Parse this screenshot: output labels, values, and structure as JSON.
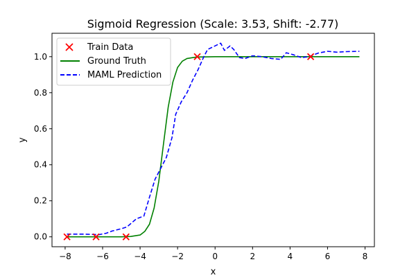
{
  "chart_data": {
    "type": "line",
    "title": "Sigmoid Regression (Scale: 3.53, Shift: -2.77)",
    "xlabel": "x",
    "ylabel": "y",
    "xlim": [
      -8.7,
      8.5
    ],
    "ylim": [
      -0.055,
      1.13
    ],
    "x_ticks": [
      -8,
      -6,
      -4,
      -2,
      0,
      2,
      4,
      6,
      8
    ],
    "y_ticks": [
      0.0,
      0.2,
      0.4,
      0.6,
      0.8,
      1.0
    ],
    "grid": false,
    "legend_position": "top-left",
    "series": [
      {
        "name": "Train Data",
        "kind": "scatter",
        "color": "#ff0000",
        "marker": "x",
        "points": [
          [
            -7.9,
            0.0
          ],
          [
            -6.35,
            0.0
          ],
          [
            -4.75,
            0.0
          ],
          [
            -0.95,
            1.0
          ],
          [
            5.1,
            1.0
          ]
        ]
      },
      {
        "name": "Ground Truth",
        "kind": "line",
        "color": "#008000",
        "style": "solid",
        "points": [
          [
            -7.9,
            0.0
          ],
          [
            -5.0,
            0.0
          ],
          [
            -4.5,
            0.002
          ],
          [
            -4.0,
            0.01
          ],
          [
            -3.75,
            0.03
          ],
          [
            -3.5,
            0.07
          ],
          [
            -3.25,
            0.16
          ],
          [
            -3.0,
            0.31
          ],
          [
            -2.77,
            0.5
          ],
          [
            -2.5,
            0.72
          ],
          [
            -2.25,
            0.86
          ],
          [
            -2.0,
            0.94
          ],
          [
            -1.75,
            0.975
          ],
          [
            -1.5,
            0.99
          ],
          [
            -1.0,
            0.998
          ],
          [
            0.0,
            1.0
          ],
          [
            7.7,
            1.0
          ]
        ]
      },
      {
        "name": "MAML Prediction",
        "kind": "line",
        "color": "#0000ff",
        "style": "dashed",
        "points": [
          [
            -7.9,
            0.015
          ],
          [
            -7.0,
            0.015
          ],
          [
            -6.2,
            0.012
          ],
          [
            -5.8,
            0.02
          ],
          [
            -5.5,
            0.032
          ],
          [
            -5.0,
            0.045
          ],
          [
            -4.7,
            0.055
          ],
          [
            -4.2,
            0.1
          ],
          [
            -3.8,
            0.115
          ],
          [
            -3.5,
            0.22
          ],
          [
            -3.2,
            0.32
          ],
          [
            -3.0,
            0.36
          ],
          [
            -2.6,
            0.44
          ],
          [
            -2.3,
            0.55
          ],
          [
            -2.1,
            0.68
          ],
          [
            -1.8,
            0.75
          ],
          [
            -1.5,
            0.8
          ],
          [
            -1.2,
            0.87
          ],
          [
            -0.9,
            0.93
          ],
          [
            -0.6,
            1.0
          ],
          [
            -0.4,
            1.04
          ],
          [
            -0.1,
            1.055
          ],
          [
            0.3,
            1.075
          ],
          [
            0.5,
            1.035
          ],
          [
            0.8,
            1.06
          ],
          [
            1.0,
            1.04
          ],
          [
            1.3,
            0.995
          ],
          [
            1.6,
            0.99
          ],
          [
            2.0,
            1.005
          ],
          [
            2.5,
            1.0
          ],
          [
            3.0,
            0.99
          ],
          [
            3.5,
            0.985
          ],
          [
            3.8,
            1.022
          ],
          [
            4.2,
            1.01
          ],
          [
            4.6,
            0.995
          ],
          [
            5.0,
            1.0
          ],
          [
            5.5,
            1.02
          ],
          [
            6.0,
            1.03
          ],
          [
            6.5,
            1.025
          ],
          [
            7.0,
            1.028
          ],
          [
            7.7,
            1.03
          ]
        ]
      }
    ]
  }
}
